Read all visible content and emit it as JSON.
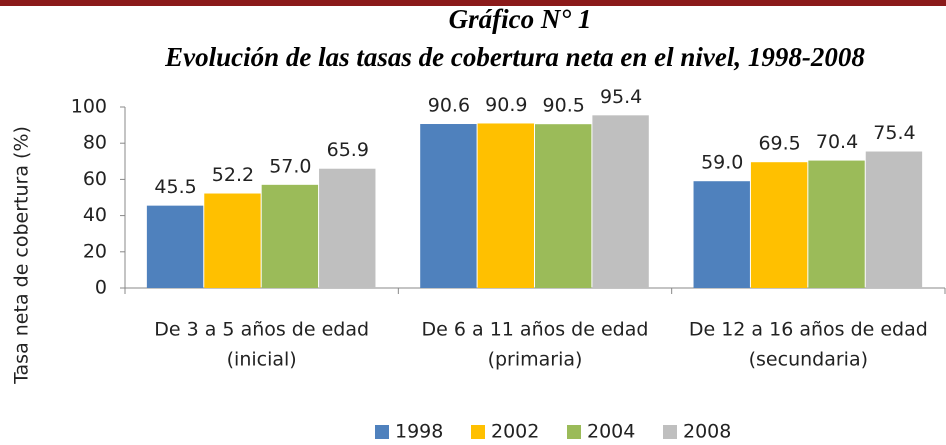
{
  "chart_data": {
    "type": "bar",
    "title": "Gráfico N° 1",
    "subtitle": "Evolución de las tasas de cobertura neta en el nivel, 1998-2008",
    "y_label": "Tasa neta de cobertura (%)",
    "categories": [
      [
        "De 3 a 5 años de edad",
        "(inicial)"
      ],
      [
        "De 6 a 11 años de edad",
        "(primaria)"
      ],
      [
        "De 12 a 16 años de edad",
        "(secundaria)"
      ]
    ],
    "series": [
      {
        "name": "1998",
        "color": "#4f81bd",
        "values": [
          45.5,
          90.6,
          59.0
        ],
        "value_labels": [
          "45.5",
          "90.6",
          "59.0"
        ]
      },
      {
        "name": "2002",
        "color": "#ffc000",
        "values": [
          52.2,
          90.9,
          69.5
        ],
        "value_labels": [
          "52.2",
          "90.9",
          "69.5"
        ]
      },
      {
        "name": "2004",
        "color": "#9bbb59",
        "values": [
          57.0,
          90.5,
          70.4
        ],
        "value_labels": [
          "57.0",
          "90.5",
          "70.4"
        ]
      },
      {
        "name": "2008",
        "color": "#bfbfbf",
        "values": [
          65.9,
          95.4,
          75.4
        ],
        "value_labels": [
          "65.9",
          "95.4",
          "75.4"
        ]
      }
    ],
    "ylim": [
      0,
      100
    ],
    "yticks": [
      0,
      20,
      40,
      60,
      80,
      100
    ],
    "grid": false,
    "legend": "bottom"
  }
}
